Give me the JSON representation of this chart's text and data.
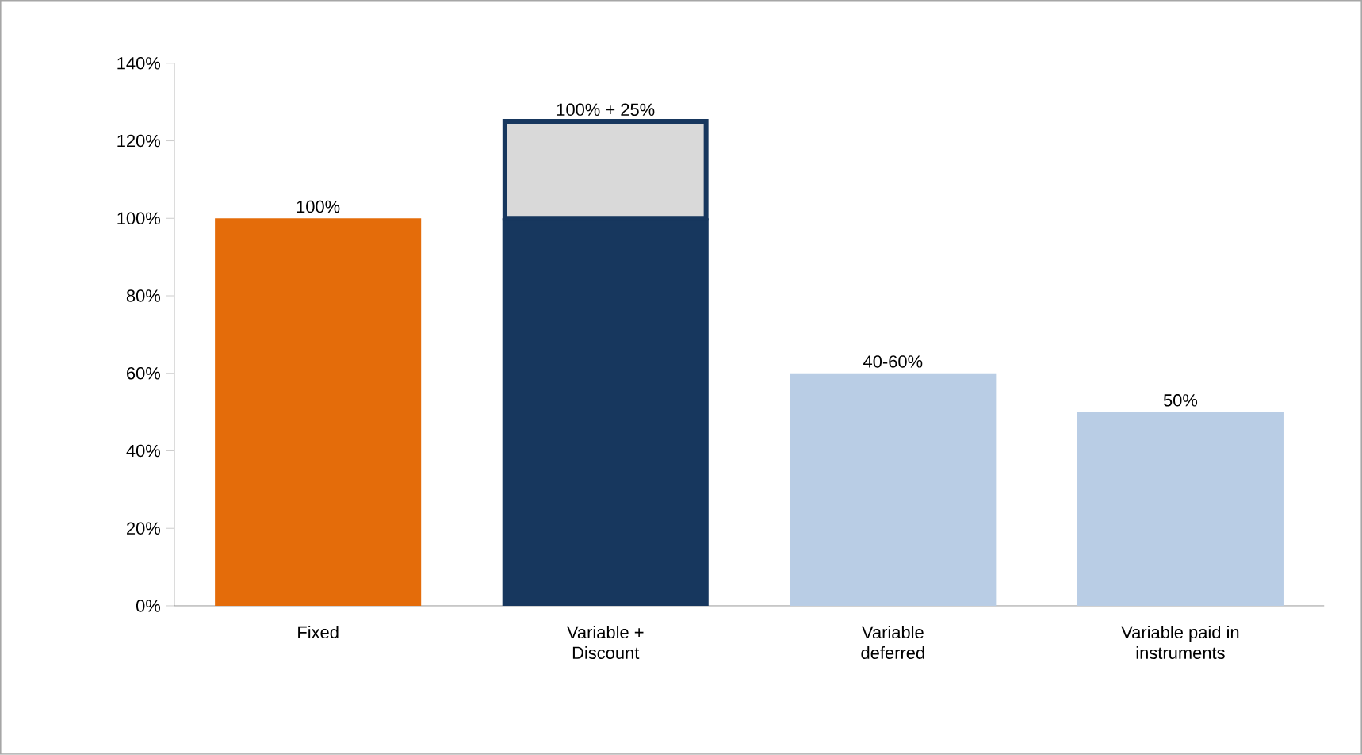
{
  "chart_data": {
    "type": "bar",
    "stacked": true,
    "categories": [
      "Fixed",
      "Variable + Discount",
      "Variable deferred",
      "Variable paid in instruments"
    ],
    "series": [
      {
        "colors": [
          "#e46c0a",
          "#17375e",
          "#b9cde5",
          "#b9cde5"
        ],
        "values": [
          100,
          100,
          60,
          50
        ],
        "value_labels": [
          "100%",
          null,
          null,
          "50%"
        ]
      },
      {
        "color": "#d9d9d9",
        "values": [
          null,
          25,
          null,
          null
        ]
      }
    ],
    "ylim": [
      0,
      140
    ],
    "yticks": [
      {
        "value": 0,
        "label": "0%"
      },
      {
        "value": 20,
        "label": "20%"
      },
      {
        "value": 40,
        "label": "40%"
      },
      {
        "value": 60,
        "label": "60%"
      },
      {
        "value": 80,
        "label": "80%"
      },
      {
        "value": 100,
        "label": "100%"
      },
      {
        "value": 120,
        "label": "120%"
      },
      {
        "value": 140,
        "label": "140%"
      }
    ],
    "annotations": [
      {
        "text": "100% + 25%",
        "x": "Variable + Discount",
        "y": 125
      },
      {
        "text": "40-60%",
        "x": "Variable deferred",
        "y": 60
      }
    ],
    "grid": false
  }
}
